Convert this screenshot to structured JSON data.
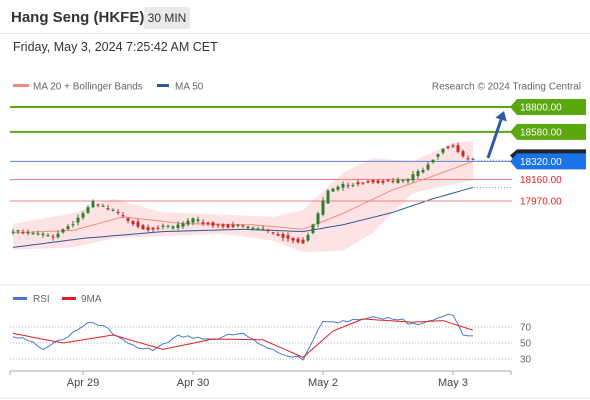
{
  "header": {
    "title": "Hang Seng (HKFE)",
    "timeframe": "30 MIN",
    "timestamp": "Friday, May 3, 2024 7:25:42 AM CET"
  },
  "legend": {
    "items": [
      {
        "label": "MA 20 + Bollinger Bands",
        "color": "#f28b82"
      },
      {
        "label": "MA 50",
        "color": "#2f5597"
      }
    ],
    "attribution": "Research © 2024 Trading Central"
  },
  "price_levels": [
    {
      "label": "18800.00",
      "color": "#5aa70f",
      "kind": "resistance",
      "value": 18800
    },
    {
      "label": "18580.00",
      "color": "#5aa70f",
      "kind": "resistance",
      "value": 18580
    },
    {
      "label": "18320.00",
      "color": "#1a73e8",
      "kind": "pivot",
      "value": 18320
    },
    {
      "label": "18160.00",
      "color": "#e02020",
      "kind": "support",
      "value": 18160
    },
    {
      "label": "17970.00",
      "color": "#e02020",
      "kind": "support",
      "value": 17970
    }
  ],
  "colors": {
    "bull": "#2e7d32",
    "bear": "#c62828",
    "band_fill": "#fde3e3",
    "ma20": "#f28b82",
    "ma50": "#2f5597",
    "rsi": "#4a78d0",
    "rsi_ma": "#e02020"
  },
  "x_axis": {
    "labels": [
      "Apr 29",
      "Apr 30",
      "May 2",
      "May 3"
    ]
  },
  "chart_data": {
    "type": "candlestick",
    "x_labels": [
      "Apr 29",
      "Apr 30",
      "May 2",
      "May 3"
    ],
    "price_key_points": [
      {
        "t": 0,
        "close": 17700
      },
      {
        "t": 8,
        "close": 17660
      },
      {
        "t": 12,
        "close": 17780
      },
      {
        "t": 16,
        "close": 17950
      },
      {
        "t": 20,
        "close": 17880
      },
      {
        "t": 26,
        "close": 17730
      },
      {
        "t": 32,
        "close": 17740
      },
      {
        "t": 36,
        "close": 17800
      },
      {
        "t": 40,
        "close": 17760
      },
      {
        "t": 46,
        "close": 17740
      },
      {
        "t": 50,
        "close": 17720
      },
      {
        "t": 55,
        "close": 17640
      },
      {
        "t": 58,
        "close": 17610
      },
      {
        "t": 60,
        "close": 17760
      },
      {
        "t": 63,
        "close": 18060
      },
      {
        "t": 66,
        "close": 18110
      },
      {
        "t": 72,
        "close": 18150
      },
      {
        "t": 76,
        "close": 18140
      },
      {
        "t": 79,
        "close": 18160
      },
      {
        "t": 82,
        "close": 18260
      },
      {
        "t": 86,
        "close": 18440
      },
      {
        "t": 88,
        "close": 18460
      },
      {
        "t": 90,
        "close": 18350
      },
      {
        "t": 92,
        "close": 18330
      }
    ],
    "ma20_key_points": [
      {
        "t": 0,
        "value": 17690
      },
      {
        "t": 12,
        "value": 17710
      },
      {
        "t": 22,
        "value": 17830
      },
      {
        "t": 34,
        "value": 17770
      },
      {
        "t": 48,
        "value": 17760
      },
      {
        "t": 58,
        "value": 17720
      },
      {
        "t": 66,
        "value": 17860
      },
      {
        "t": 76,
        "value": 18070
      },
      {
        "t": 84,
        "value": 18190
      },
      {
        "t": 92,
        "value": 18320
      }
    ],
    "ma50_key_points": [
      {
        "t": 0,
        "value": 17560
      },
      {
        "t": 14,
        "value": 17640
      },
      {
        "t": 30,
        "value": 17700
      },
      {
        "t": 46,
        "value": 17720
      },
      {
        "t": 58,
        "value": 17700
      },
      {
        "t": 66,
        "value": 17760
      },
      {
        "t": 76,
        "value": 17870
      },
      {
        "t": 84,
        "value": 17990
      },
      {
        "t": 92,
        "value": 18090
      }
    ],
    "bollinger_band_key_points": [
      {
        "t": 0,
        "upper": 17770,
        "lower": 17540
      },
      {
        "t": 12,
        "upper": 17860,
        "lower": 17560
      },
      {
        "t": 20,
        "upper": 17990,
        "lower": 17640
      },
      {
        "t": 30,
        "upper": 17870,
        "lower": 17660
      },
      {
        "t": 42,
        "upper": 17850,
        "lower": 17680
      },
      {
        "t": 52,
        "upper": 17830,
        "lower": 17620
      },
      {
        "t": 58,
        "upper": 17890,
        "lower": 17520
      },
      {
        "t": 66,
        "upper": 18220,
        "lower": 17530
      },
      {
        "t": 72,
        "upper": 18350,
        "lower": 17690
      },
      {
        "t": 80,
        "upper": 18320,
        "lower": 18040
      },
      {
        "t": 88,
        "upper": 18480,
        "lower": 18120
      },
      {
        "t": 92,
        "upper": 18500,
        "lower": 18150
      }
    ],
    "projection": {
      "from": 18350,
      "to": 18800
    },
    "rsi": {
      "name": "RSI",
      "ma_name": "9MA",
      "levels": [
        70,
        50,
        30
      ],
      "key_points": [
        {
          "t": 0,
          "value": 57
        },
        {
          "t": 6,
          "value": 45
        },
        {
          "t": 12,
          "value": 62
        },
        {
          "t": 16,
          "value": 75
        },
        {
          "t": 22,
          "value": 55
        },
        {
          "t": 28,
          "value": 38
        },
        {
          "t": 34,
          "value": 60
        },
        {
          "t": 40,
          "value": 55
        },
        {
          "t": 46,
          "value": 60
        },
        {
          "t": 50,
          "value": 48
        },
        {
          "t": 54,
          "value": 38
        },
        {
          "t": 58,
          "value": 28
        },
        {
          "t": 62,
          "value": 75
        },
        {
          "t": 66,
          "value": 80
        },
        {
          "t": 70,
          "value": 80
        },
        {
          "t": 76,
          "value": 78
        },
        {
          "t": 80,
          "value": 75
        },
        {
          "t": 84,
          "value": 82
        },
        {
          "t": 88,
          "value": 82
        },
        {
          "t": 90,
          "value": 58
        },
        {
          "t": 92,
          "value": 58
        }
      ],
      "ma_key_points": [
        {
          "t": 0,
          "value": 62
        },
        {
          "t": 10,
          "value": 50
        },
        {
          "t": 20,
          "value": 60
        },
        {
          "t": 30,
          "value": 42
        },
        {
          "t": 40,
          "value": 55
        },
        {
          "t": 50,
          "value": 54
        },
        {
          "t": 58,
          "value": 32
        },
        {
          "t": 64,
          "value": 65
        },
        {
          "t": 70,
          "value": 80
        },
        {
          "t": 80,
          "value": 76
        },
        {
          "t": 86,
          "value": 78
        },
        {
          "t": 92,
          "value": 66
        }
      ]
    }
  }
}
